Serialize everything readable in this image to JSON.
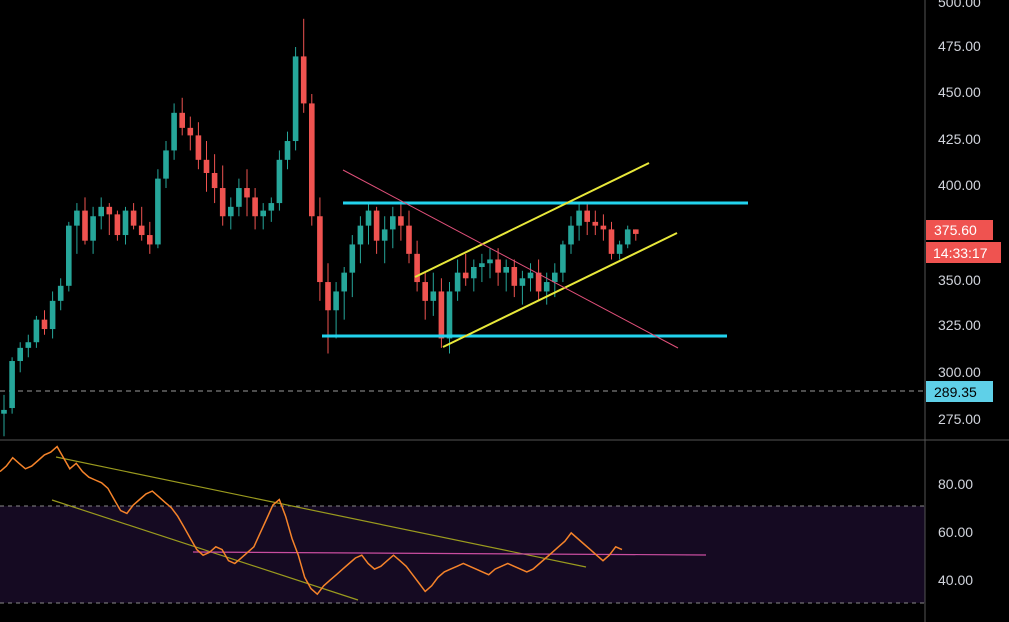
{
  "colors": {
    "background": "#000000",
    "up": "#26a69a",
    "down": "#ef5350",
    "axis_text": "#d1d4dc",
    "cyan_line": "#22d3ee",
    "yellow_line": "#e8e83a",
    "pink_line": "#e0507a",
    "rsi_line": "#f5832a",
    "rsi_band": "#150a22",
    "rsi_trend": "#9a9a1e",
    "rsi_mid": "#c94da0",
    "price_badge": "#ef5350",
    "dashed_badge": "#5fd0e8"
  },
  "price_axis": {
    "ticks": [
      "475.00",
      "450.00",
      "425.00",
      "400.00",
      "375.00",
      "350.00",
      "325.00",
      "300.00",
      "275.00"
    ],
    "clipped_top": "500.00",
    "range": [
      266,
      500
    ]
  },
  "badges": {
    "last_price": "375.60",
    "countdown": "14:33:17",
    "dashed_level": "289.35"
  },
  "rsi_axis": {
    "ticks": [
      "80.00",
      "60.00",
      "40.00"
    ],
    "range": [
      28,
      93
    ],
    "band": [
      30,
      70
    ]
  },
  "chart_data": [
    {
      "type": "candlestick",
      "y_range": [
        266,
        500
      ],
      "candles": [
        [
          280,
          290,
          268,
          282
        ],
        [
          283,
          310,
          280,
          308
        ],
        [
          308,
          318,
          302,
          315
        ],
        [
          315,
          322,
          310,
          318
        ],
        [
          318,
          332,
          315,
          330
        ],
        [
          330,
          335,
          322,
          325
        ],
        [
          325,
          345,
          320,
          340
        ],
        [
          340,
          352,
          335,
          348
        ],
        [
          348,
          382,
          345,
          380
        ],
        [
          380,
          392,
          365,
          388
        ],
        [
          388,
          395,
          370,
          372
        ],
        [
          372,
          390,
          365,
          385
        ],
        [
          385,
          395,
          378,
          390
        ],
        [
          390,
          392,
          375,
          386
        ],
        [
          386,
          388,
          372,
          375
        ],
        [
          375,
          390,
          370,
          388
        ],
        [
          388,
          392,
          378,
          380
        ],
        [
          380,
          390,
          372,
          375
        ],
        [
          375,
          382,
          365,
          370
        ],
        [
          370,
          410,
          368,
          405
        ],
        [
          405,
          425,
          400,
          420
        ],
        [
          420,
          445,
          415,
          440
        ],
        [
          440,
          448,
          428,
          432
        ],
        [
          432,
          438,
          420,
          428
        ],
        [
          428,
          435,
          410,
          415
        ],
        [
          415,
          425,
          398,
          408
        ],
        [
          408,
          418,
          392,
          400
        ],
        [
          400,
          412,
          380,
          385
        ],
        [
          385,
          395,
          378,
          390
        ],
        [
          390,
          405,
          385,
          400
        ],
        [
          400,
          410,
          385,
          395
        ],
        [
          395,
          400,
          378,
          385
        ],
        [
          385,
          392,
          378,
          388
        ],
        [
          388,
          395,
          382,
          392
        ],
        [
          392,
          420,
          388,
          415
        ],
        [
          415,
          430,
          410,
          425
        ],
        [
          425,
          475,
          420,
          470
        ],
        [
          470,
          490,
          440,
          445
        ],
        [
          445,
          450,
          380,
          385
        ],
        [
          385,
          395,
          340,
          350
        ],
        [
          350,
          360,
          312,
          335
        ],
        [
          335,
          350,
          320,
          345
        ],
        [
          345,
          358,
          330,
          355
        ],
        [
          355,
          375,
          342,
          370
        ],
        [
          370,
          385,
          360,
          380
        ],
        [
          380,
          392,
          370,
          388
        ],
        [
          388,
          390,
          365,
          372
        ],
        [
          372,
          385,
          360,
          378
        ],
        [
          378,
          390,
          368,
          385
        ],
        [
          385,
          392,
          372,
          380
        ],
        [
          380,
          388,
          360,
          365
        ],
        [
          365,
          372,
          345,
          350
        ],
        [
          350,
          355,
          330,
          340
        ],
        [
          340,
          355,
          332,
          345
        ],
        [
          345,
          352,
          315,
          320
        ],
        [
          320,
          350,
          312,
          345
        ],
        [
          345,
          362,
          340,
          355
        ],
        [
          355,
          365,
          348,
          352
        ],
        [
          352,
          362,
          345,
          358
        ],
        [
          358,
          365,
          350,
          360
        ],
        [
          360,
          368,
          352,
          362
        ],
        [
          362,
          368,
          348,
          355
        ],
        [
          355,
          362,
          345,
          358
        ],
        [
          358,
          362,
          342,
          348
        ],
        [
          348,
          356,
          338,
          352
        ],
        [
          352,
          360,
          345,
          355
        ],
        [
          355,
          362,
          340,
          345
        ],
        [
          345,
          355,
          338,
          350
        ],
        [
          350,
          360,
          342,
          355
        ],
        [
          355,
          372,
          350,
          370
        ],
        [
          370,
          385,
          365,
          380
        ],
        [
          380,
          392,
          372,
          388
        ],
        [
          388,
          392,
          375,
          382
        ],
        [
          382,
          388,
          375,
          380
        ],
        [
          380,
          386,
          372,
          378
        ],
        [
          378,
          382,
          362,
          365
        ],
        [
          365,
          372,
          362,
          370
        ],
        [
          370,
          380,
          368,
          378
        ],
        [
          378,
          378,
          372,
          375.6
        ]
      ]
    },
    {
      "type": "line",
      "name": "RSI",
      "y_range": [
        28,
        93
      ],
      "values": [
        82,
        84,
        87,
        85,
        83,
        84,
        86,
        88,
        89,
        91,
        87,
        83,
        85,
        82,
        80,
        79,
        78,
        76,
        72,
        68,
        67,
        70,
        72,
        74,
        75,
        73,
        71,
        69,
        66,
        62,
        58,
        54,
        52,
        53,
        55,
        54,
        50,
        49,
        51,
        53,
        55,
        60,
        65,
        70,
        72,
        66,
        58,
        52,
        44,
        40,
        38,
        41,
        43,
        45,
        47,
        49,
        51,
        52,
        49,
        47,
        48,
        50,
        52,
        50,
        48,
        45,
        42,
        39,
        41,
        44,
        46,
        47,
        48,
        49,
        48,
        47,
        46,
        45,
        47,
        48,
        49,
        48,
        47,
        46,
        47,
        49,
        51,
        53,
        55,
        57,
        60,
        58,
        56,
        54,
        52,
        50,
        52,
        55,
        54
      ]
    }
  ]
}
